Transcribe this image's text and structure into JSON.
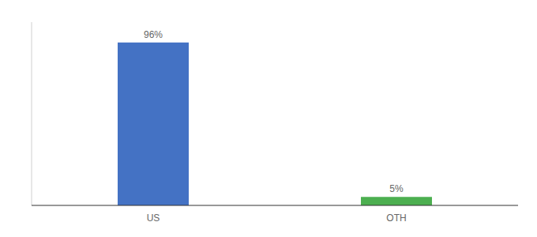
{
  "chart_data": {
    "type": "bar",
    "categories": [
      "US",
      "OTH"
    ],
    "values": [
      96,
      5
    ],
    "value_labels": [
      "96%",
      "5%"
    ],
    "colors": [
      "#4472c4",
      "#4caf50"
    ],
    "ylim": [
      0,
      108
    ],
    "data_labels": true,
    "tick_labels": "x",
    "grid": false
  }
}
